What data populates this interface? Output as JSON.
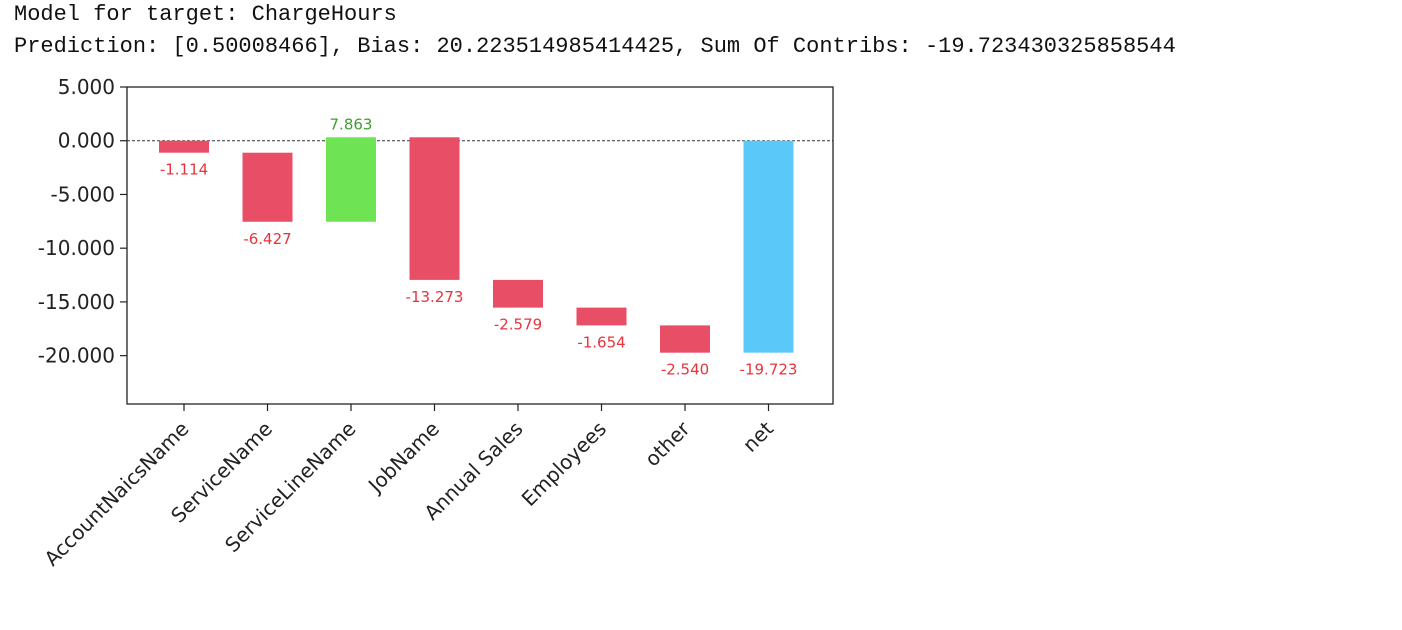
{
  "output": {
    "line1": "Model for target: ChargeHours",
    "line2": "Prediction: [0.50008466], Bias: 20.223514985414425, Sum Of Contribs: -19.723430325858544"
  },
  "colors": {
    "negative": "#e84e65",
    "positive": "#6ee354",
    "net": "#5bc8fa",
    "negative_label": "#e8333b",
    "positive_label": "#3f9e2f"
  },
  "chart_data": {
    "type": "waterfall",
    "title": "",
    "xlabel": "",
    "ylabel": "",
    "ylim": [
      -24.5,
      5.0
    ],
    "yticks": [
      5,
      0,
      -5,
      -10,
      -15,
      -20
    ],
    "ytick_labels": [
      "5.000",
      "0.000",
      "-5.000",
      "-10.000",
      "-15.000",
      "-20.000"
    ],
    "zero_line": "dashed",
    "grid": false,
    "categories": [
      "AccountNaicsName",
      "ServiceName",
      "ServiceLineName",
      "JobName",
      "Annual Sales",
      "Employees",
      "other",
      "net"
    ],
    "values": [
      -1.114,
      -6.427,
      7.863,
      -13.273,
      -2.579,
      -1.654,
      -2.54,
      -19.723
    ],
    "labels": [
      "-1.114",
      "-6.427",
      "7.863",
      "-13.273",
      "-2.579",
      "-1.654",
      "-2.540",
      "-19.723"
    ],
    "net_index": 7
  }
}
